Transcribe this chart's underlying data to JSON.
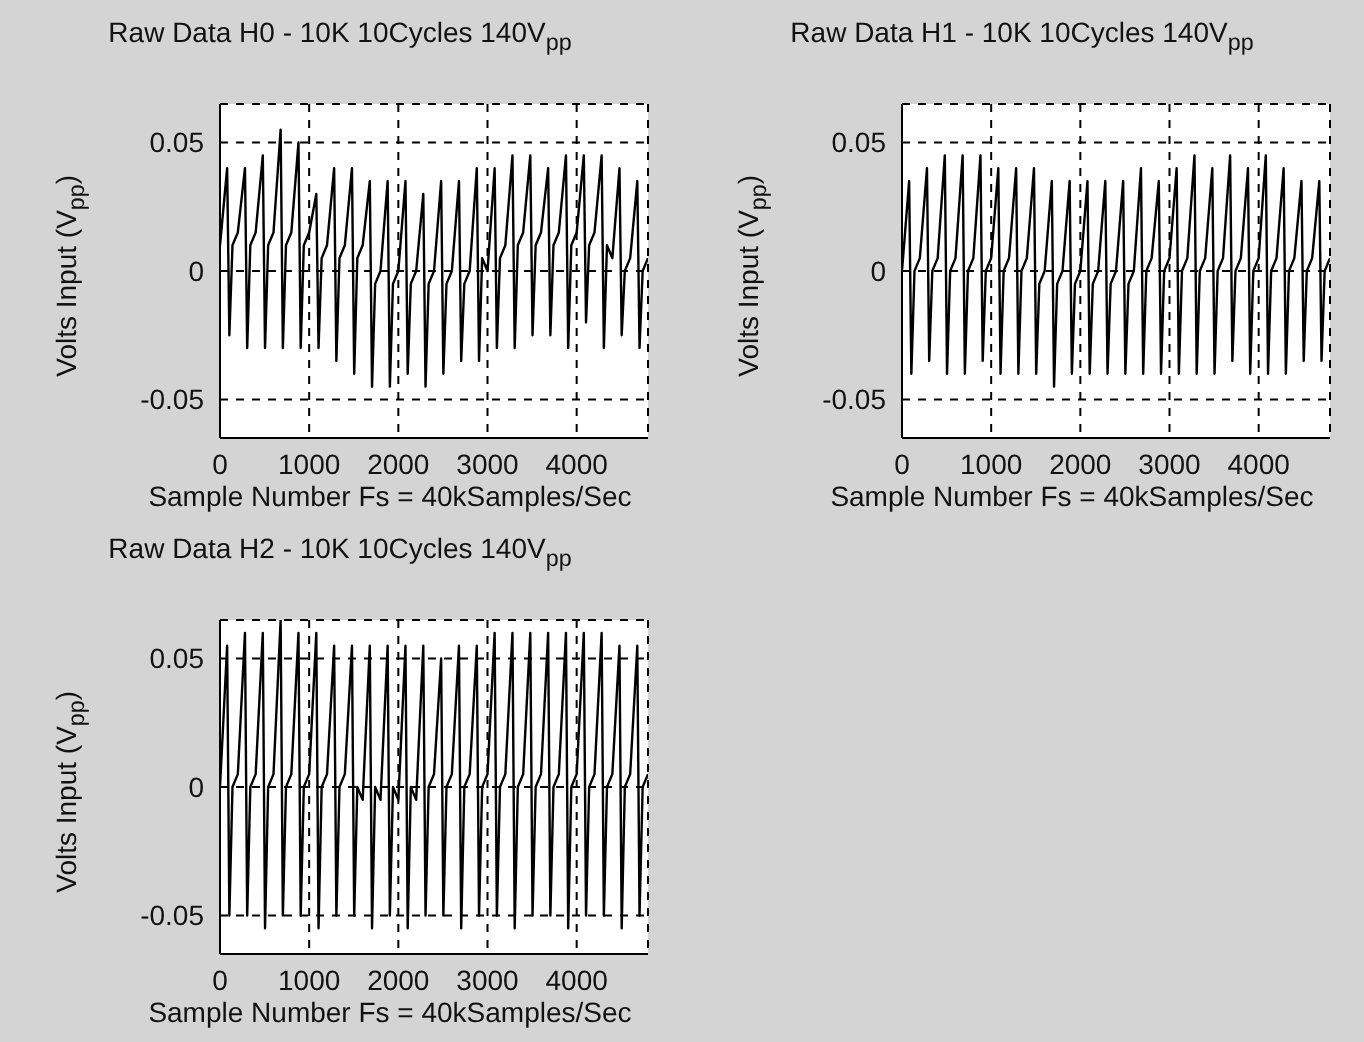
{
  "chart_data": [
    {
      "type": "line",
      "title": "Raw Data H0 - 10K 10Cycles 140V$_{pp}$",
      "xlabel": "Sample Number Fs = 40kSamples/Sec",
      "ylabel": "Volts Input (V$_{pp}$)",
      "x": [
        0,
        80,
        105,
        140,
        200,
        280,
        305,
        340,
        400,
        480,
        505,
        540,
        600,
        680,
        705,
        740,
        800,
        880,
        905,
        940,
        1000,
        1080,
        1105,
        1140,
        1200,
        1280,
        1305,
        1340,
        1400,
        1480,
        1505,
        1540,
        1600,
        1680,
        1705,
        1740,
        1800,
        1880,
        1905,
        1940,
        2000,
        2080,
        2105,
        2140,
        2200,
        2280,
        2305,
        2340,
        2400,
        2480,
        2505,
        2540,
        2600,
        2680,
        2705,
        2740,
        2800,
        2880,
        2905,
        2940,
        3000,
        3080,
        3105,
        3140,
        3200,
        3280,
        3305,
        3340,
        3400,
        3480,
        3505,
        3540,
        3600,
        3680,
        3705,
        3740,
        3800,
        3880,
        3905,
        3940,
        4000,
        4080,
        4105,
        4140,
        4200,
        4280,
        4305,
        4340,
        4400,
        4480,
        4505,
        4540,
        4600,
        4680,
        4705,
        4740,
        4800
      ],
      "series": [
        {
          "color": "#000000",
          "values": [
            0.01,
            0.04,
            -0.025,
            0.01,
            0.015,
            0.04,
            -0.03,
            0.01,
            0.015,
            0.045,
            -0.03,
            0.01,
            0.015,
            0.055,
            -0.03,
            0.01,
            0.015,
            0.05,
            -0.03,
            0.01,
            0.015,
            0.03,
            -0.03,
            0.005,
            0.01,
            0.04,
            -0.035,
            0.005,
            0.01,
            0.04,
            -0.04,
            0.005,
            0.01,
            0.035,
            -0.045,
            -0.005,
            0,
            0.035,
            -0.045,
            -0.005,
            0,
            0.035,
            -0.04,
            -0.005,
            0,
            0.03,
            -0.045,
            -0.005,
            0,
            0.035,
            -0.04,
            -0.005,
            0,
            0.035,
            -0.035,
            -0.005,
            0,
            0.04,
            -0.035,
            0.005,
            0,
            0.04,
            -0.03,
            0.005,
            0.01,
            0.045,
            -0.03,
            0.01,
            0.015,
            0.045,
            -0.025,
            0.01,
            0.015,
            0.04,
            -0.025,
            0.01,
            0.015,
            0.045,
            -0.03,
            0.01,
            0.015,
            0.045,
            -0.02,
            0.01,
            0.015,
            0.045,
            -0.03,
            0.01,
            0.005,
            0.04,
            -0.025,
            0,
            0.005,
            0.035,
            -0.03,
            0,
            0.005
          ]
        }
      ],
      "xlim": [
        0,
        4800
      ],
      "xticks": [
        0,
        1000,
        2000,
        3000,
        4000
      ],
      "ylim": [
        -0.065,
        0.065
      ],
      "yticks": [
        -0.05,
        0,
        0.05
      ],
      "grid": true
    },
    {
      "type": "line",
      "title": "Raw Data H1 - 10K 10Cycles 140V$_{pp}$",
      "xlabel": "Sample Number Fs = 40kSamples/Sec",
      "ylabel": "Volts Input (V$_{pp}$)",
      "x": [
        0,
        80,
        105,
        140,
        200,
        280,
        305,
        340,
        400,
        480,
        505,
        540,
        600,
        680,
        705,
        740,
        800,
        880,
        905,
        940,
        1000,
        1080,
        1105,
        1140,
        1200,
        1280,
        1305,
        1340,
        1400,
        1480,
        1505,
        1540,
        1600,
        1680,
        1705,
        1740,
        1800,
        1880,
        1905,
        1940,
        2000,
        2080,
        2105,
        2140,
        2200,
        2280,
        2305,
        2340,
        2400,
        2480,
        2505,
        2540,
        2600,
        2680,
        2705,
        2740,
        2800,
        2880,
        2905,
        2940,
        3000,
        3080,
        3105,
        3140,
        3200,
        3280,
        3305,
        3340,
        3400,
        3480,
        3505,
        3540,
        3600,
        3680,
        3705,
        3740,
        3800,
        3880,
        3905,
        3940,
        4000,
        4080,
        4105,
        4140,
        4200,
        4280,
        4305,
        4340,
        4400,
        4480,
        4505,
        4540,
        4600,
        4680,
        4705,
        4740,
        4800
      ],
      "series": [
        {
          "color": "#000000",
          "values": [
            0,
            0.035,
            -0.04,
            0,
            0.005,
            0.04,
            -0.035,
            0,
            0.005,
            0.045,
            -0.04,
            0,
            0.005,
            0.045,
            -0.04,
            0,
            0.005,
            0.045,
            -0.035,
            0,
            0.005,
            0.04,
            -0.04,
            0,
            0.005,
            0.04,
            -0.04,
            0,
            0.005,
            0.04,
            -0.04,
            -0.005,
            0,
            0.035,
            -0.045,
            -0.005,
            0,
            0.035,
            -0.04,
            -0.005,
            0,
            0.035,
            -0.04,
            -0.005,
            0,
            0.035,
            -0.04,
            -0.005,
            0,
            0.035,
            -0.04,
            -0.005,
            0,
            0.04,
            -0.04,
            0,
            0.005,
            0.035,
            -0.04,
            0,
            0.005,
            0.04,
            -0.04,
            0,
            0.005,
            0.045,
            -0.04,
            0,
            0.005,
            0.04,
            -0.04,
            0,
            0.005,
            0.045,
            -0.035,
            0,
            0.005,
            0.04,
            -0.04,
            0,
            0.005,
            0.045,
            -0.04,
            0,
            0.005,
            0.04,
            -0.04,
            0,
            0.005,
            0.035,
            -0.035,
            0,
            0.005,
            0.035,
            -0.035,
            0,
            0.005
          ]
        }
      ],
      "xlim": [
        0,
        4800
      ],
      "xticks": [
        0,
        1000,
        2000,
        3000,
        4000
      ],
      "ylim": [
        -0.065,
        0.065
      ],
      "yticks": [
        -0.05,
        0,
        0.05
      ],
      "grid": true
    },
    {
      "type": "line",
      "title": "Raw Data H2 - 10K 10Cycles 140V$_{pp}$",
      "xlabel": "Sample Number Fs = 40kSamples/Sec",
      "ylabel": "Volts Input (V$_{pp}$)",
      "x": [
        0,
        80,
        105,
        140,
        200,
        280,
        305,
        340,
        400,
        480,
        505,
        540,
        600,
        680,
        705,
        740,
        800,
        880,
        905,
        940,
        1000,
        1080,
        1105,
        1140,
        1200,
        1280,
        1305,
        1340,
        1400,
        1480,
        1505,
        1540,
        1600,
        1680,
        1705,
        1740,
        1800,
        1880,
        1905,
        1940,
        2000,
        2080,
        2105,
        2140,
        2200,
        2280,
        2305,
        2340,
        2400,
        2480,
        2505,
        2540,
        2600,
        2680,
        2705,
        2740,
        2800,
        2880,
        2905,
        2940,
        3000,
        3080,
        3105,
        3140,
        3200,
        3280,
        3305,
        3340,
        3400,
        3480,
        3505,
        3540,
        3600,
        3680,
        3705,
        3740,
        3800,
        3880,
        3905,
        3940,
        4000,
        4080,
        4105,
        4140,
        4200,
        4280,
        4305,
        4340,
        4400,
        4480,
        4505,
        4540,
        4600,
        4680,
        4705,
        4740,
        4800
      ],
      "series": [
        {
          "color": "#000000",
          "values": [
            0,
            0.055,
            -0.05,
            0,
            0.005,
            0.06,
            -0.05,
            0,
            0.005,
            0.06,
            -0.055,
            0,
            0.005,
            0.065,
            -0.05,
            0,
            0.005,
            0.06,
            -0.05,
            0,
            0.005,
            0.06,
            -0.055,
            0,
            0.005,
            0.055,
            -0.05,
            0,
            0.005,
            0.055,
            -0.05,
            0,
            -0.005,
            0.055,
            -0.055,
            0,
            -0.005,
            0.055,
            -0.05,
            0,
            -0.005,
            0.055,
            -0.055,
            0,
            -0.005,
            0.055,
            -0.05,
            0,
            0.005,
            0.05,
            -0.05,
            0,
            0.005,
            0.055,
            -0.055,
            0,
            0.005,
            0.055,
            -0.05,
            0,
            0.005,
            0.06,
            -0.05,
            0,
            0.005,
            0.06,
            -0.055,
            0,
            0.005,
            0.06,
            -0.05,
            0,
            0.005,
            0.06,
            -0.05,
            0,
            0.005,
            0.06,
            -0.055,
            0,
            0.005,
            0.06,
            -0.05,
            0,
            0.005,
            0.06,
            -0.05,
            0,
            0.005,
            0.055,
            -0.055,
            0,
            0.005,
            0.055,
            -0.05,
            0,
            0.005
          ]
        }
      ],
      "xlim": [
        0,
        4800
      ],
      "xticks": [
        0,
        1000,
        2000,
        3000,
        4000
      ],
      "ylim": [
        -0.065,
        0.065
      ],
      "yticks": [
        -0.05,
        0,
        0.05
      ],
      "grid": true
    }
  ]
}
